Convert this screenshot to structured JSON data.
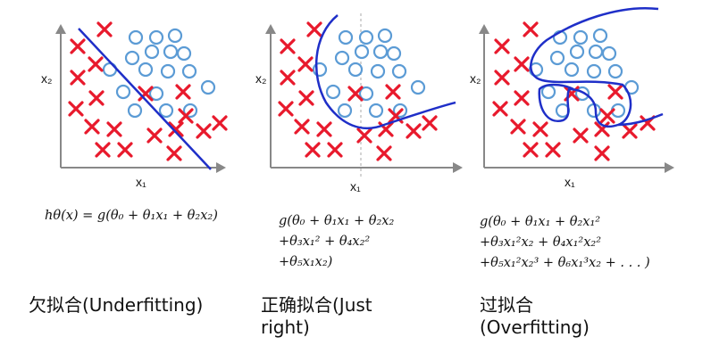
{
  "axes": {
    "x_label": "x₁",
    "y_label": "x₂"
  },
  "colors": {
    "cross": "#e8192c",
    "circle": "#5b9bd5",
    "boundary": "#1f2fc8",
    "axis": "#888888"
  },
  "panels": [
    {
      "id": "underfitting",
      "formula_lines": [
        "hθ(x) = g(θ₀ + θ₁x₁ + θ₂x₂)"
      ],
      "caption_lines": [
        "欠拟合(Underfitting)"
      ]
    },
    {
      "id": "just-right",
      "formula_lines": [
        "g(θ₀ + θ₁x₁ + θ₂x₂",
        "+θ₃x₁² + θ₄x₂²",
        "+θ₅x₁x₂)"
      ],
      "caption_lines": [
        "正确拟合(Just",
        "right)"
      ]
    },
    {
      "id": "overfitting",
      "formula_lines": [
        "g(θ₀ + θ₁x₁ + θ₂x₁²",
        "+θ₃x₁²x₂ + θ₄x₁²x₂²",
        "+θ₅x₁²x₂³ + θ₆x₁³x₂ + . . . )"
      ],
      "caption_lines": [
        "过拟合",
        "(Overfitting)"
      ]
    }
  ]
}
